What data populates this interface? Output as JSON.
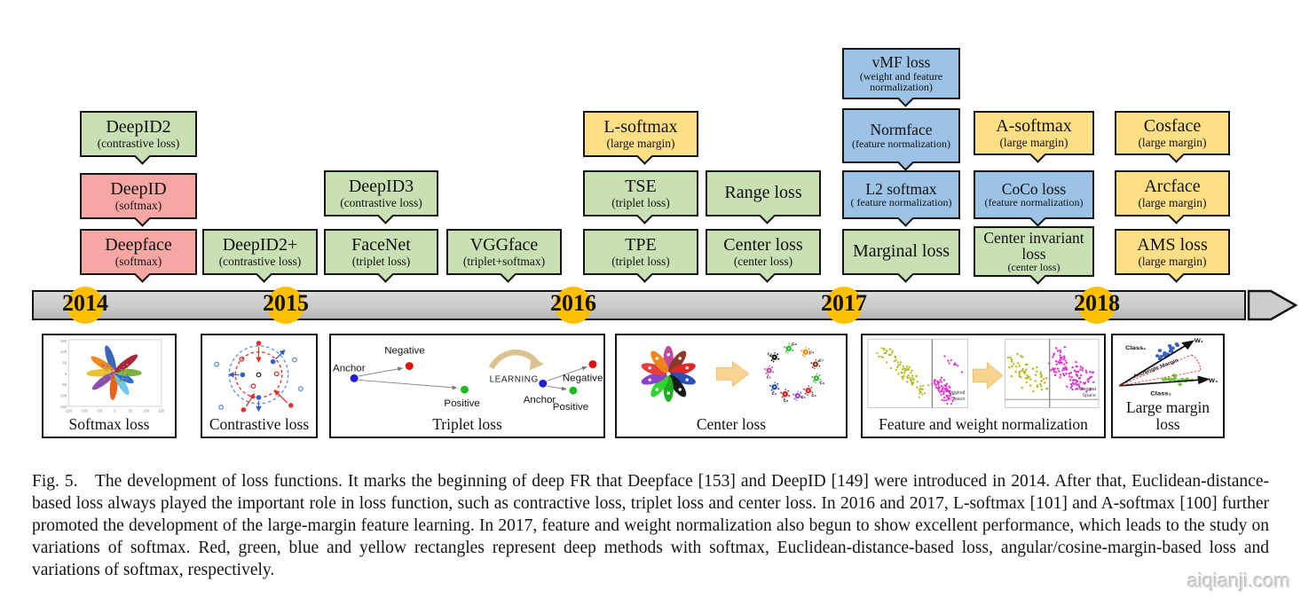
{
  "figure": {
    "caption": "Fig. 5.  The development of loss functions. It marks the beginning of deep FR that Deepface [153] and DeepID [149] were introduced in 2014. After that, Euclidean-distance-based loss always played the important role in loss function, such as contractive loss, triplet loss and center loss. In 2016 and 2017, L-softmax [101] and A-softmax [100] further promoted the development of the large-margin feature learning. In 2017, feature and weight normalization also begun to show excellent performance, which leads to the study on variations of softmax. Red, green, blue and yellow rectangles represent deep methods with softmax, Euclidean-distance-based loss, angular/cosine-margin-based loss and variations of softmax, respectively.",
    "watermark": "aiqianji.com"
  },
  "colors": {
    "categories": {
      "red": "#F6A6A3",
      "green": "#C9DFB4",
      "blue": "#9CC3E6",
      "yellow": "#FFDF86"
    },
    "year_circle": "#FFC000",
    "timeline_bar": "#CBCBCB"
  },
  "timeline": {
    "years": [
      "2014",
      "2015",
      "2016",
      "2017",
      "2018"
    ],
    "boxes": [
      {
        "id": "deepid2",
        "label": "DeepID2",
        "sublabel": "(contrastive loss)",
        "category": "green"
      },
      {
        "id": "deepid",
        "label": "DeepID",
        "sublabel": "(softmax)",
        "category": "red"
      },
      {
        "id": "deepface",
        "label": "Deepface",
        "sublabel": "(softmax)",
        "category": "red"
      },
      {
        "id": "deepid2plus",
        "label": "DeepID2+",
        "sublabel": "(contrastive loss)",
        "category": "green"
      },
      {
        "id": "deepid3",
        "label": "DeepID3",
        "sublabel": "(contrastive loss)",
        "category": "green"
      },
      {
        "id": "facenet",
        "label": "FaceNet",
        "sublabel": "(triplet loss)",
        "category": "green"
      },
      {
        "id": "vggface",
        "label": "VGGface",
        "sublabel": "(triplet+softmax)",
        "category": "green"
      },
      {
        "id": "lsoftmax",
        "label": "L-softmax",
        "sublabel": "(large margin)",
        "category": "yellow"
      },
      {
        "id": "tse",
        "label": "TSE",
        "sublabel": "(triplet loss)",
        "category": "green"
      },
      {
        "id": "tpe",
        "label": "TPE",
        "sublabel": "(triplet loss)",
        "category": "green"
      },
      {
        "id": "rangeloss",
        "label": "Range loss",
        "sublabel": "",
        "category": "green"
      },
      {
        "id": "centerloss",
        "label": "Center loss",
        "sublabel": "(center loss)",
        "category": "green"
      },
      {
        "id": "vmf",
        "label": "vMF loss",
        "sublabel": "(weight and feature normalization)",
        "category": "blue"
      },
      {
        "id": "normface",
        "label": "Normface",
        "sublabel": "(feature normalization)",
        "category": "blue"
      },
      {
        "id": "l2softmax",
        "label": "L2 softmax",
        "sublabel": "( feature normalization)",
        "category": "blue"
      },
      {
        "id": "marginal",
        "label": "Marginal loss",
        "sublabel": "",
        "category": "green"
      },
      {
        "id": "asoftmax",
        "label": "A-softmax",
        "sublabel": "(large margin)",
        "category": "yellow"
      },
      {
        "id": "coco",
        "label": "CoCo loss",
        "sublabel": "(feature normalization)",
        "category": "blue"
      },
      {
        "id": "centerinvariant",
        "label": "Center invariant loss",
        "sublabel": "(center loss)",
        "category": "green"
      },
      {
        "id": "cosface",
        "label": "Cosface",
        "sublabel": "(large margin)",
        "category": "yellow"
      },
      {
        "id": "arcface",
        "label": "Arcface",
        "sublabel": "(large margin)",
        "category": "yellow"
      },
      {
        "id": "ams",
        "label": "AMS loss",
        "sublabel": "(large margin)",
        "category": "yellow"
      }
    ]
  },
  "panels": [
    {
      "caption": "Softmax loss",
      "x_ticks": [
        "-150",
        "-100",
        "-50",
        "0",
        "50",
        "100",
        "150"
      ],
      "y_ticks": [
        "150",
        "100",
        "50",
        "0",
        "-50",
        "-100",
        "-150"
      ]
    },
    {
      "caption": "Contrastive loss"
    },
    {
      "caption": "Triplet loss",
      "labels": {
        "anchor": "Anchor",
        "negative": "Negative",
        "positive": "Positive",
        "learning": "LEARNING"
      }
    },
    {
      "caption": "Center loss",
      "clusters": [
        "c₈",
        "c₄",
        "c₇",
        "c₃",
        "c₀",
        "c₆",
        "c₅",
        "c₂",
        "c₁",
        "c₉"
      ]
    },
    {
      "caption": "Feature and weight normalization",
      "annotation_line1": "Original",
      "annotation_line2": "Space"
    },
    {
      "caption": "Large margin loss",
      "labels": {
        "class1": "Class₁",
        "class2": "Class₂",
        "w1": "W₁",
        "w2": "W₂",
        "margin": "Arc/angle Margin"
      }
    }
  ]
}
